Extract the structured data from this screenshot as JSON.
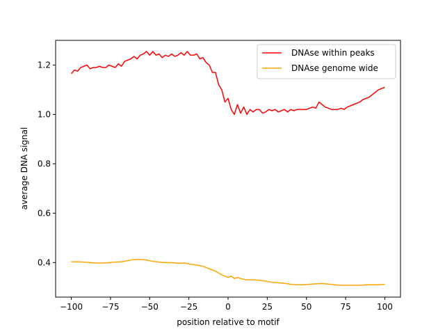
{
  "chart_data": {
    "type": "line",
    "title": "",
    "xlabel": "position relative to motif",
    "ylabel": "average DNA signal",
    "xlim": [
      -110,
      110
    ],
    "ylim": [
      0.26,
      1.3
    ],
    "xticks": [
      -100,
      -75,
      -50,
      -25,
      0,
      25,
      50,
      75,
      100
    ],
    "xtick_labels": [
      "−100",
      "−75",
      "−50",
      "−25",
      "0",
      "25",
      "50",
      "75",
      "100"
    ],
    "yticks": [
      0.4,
      0.6,
      0.8,
      1.0,
      1.2
    ],
    "ytick_labels": [
      "0.4",
      "0.6",
      "0.8",
      "1.0",
      "1.2"
    ],
    "grid": false,
    "legend": "top-right",
    "series": [
      {
        "name": "DNAse within peaks",
        "color": "#ff0000",
        "x": [
          -100,
          -98,
          -96,
          -94,
          -92,
          -90,
          -88,
          -86,
          -84,
          -82,
          -80,
          -78,
          -76,
          -74,
          -72,
          -70,
          -68,
          -66,
          -64,
          -62,
          -60,
          -58,
          -56,
          -54,
          -52,
          -50,
          -48,
          -46,
          -44,
          -42,
          -40,
          -38,
          -36,
          -34,
          -32,
          -30,
          -28,
          -26,
          -24,
          -22,
          -20,
          -18,
          -16,
          -14,
          -12,
          -10,
          -8,
          -6,
          -4,
          -2,
          0,
          2,
          4,
          6,
          8,
          10,
          12,
          14,
          16,
          18,
          20,
          22,
          24,
          26,
          28,
          30,
          32,
          34,
          36,
          38,
          40,
          42,
          44,
          46,
          48,
          50,
          52,
          54,
          56,
          58,
          60,
          62,
          64,
          66,
          68,
          70,
          72,
          74,
          76,
          78,
          80,
          82,
          84,
          86,
          88,
          90,
          92,
          94,
          96,
          98,
          100
        ],
        "y": [
          1.165,
          1.18,
          1.175,
          1.19,
          1.195,
          1.2,
          1.185,
          1.19,
          1.19,
          1.195,
          1.19,
          1.19,
          1.2,
          1.195,
          1.19,
          1.205,
          1.195,
          1.215,
          1.22,
          1.225,
          1.235,
          1.225,
          1.24,
          1.245,
          1.255,
          1.24,
          1.255,
          1.24,
          1.245,
          1.23,
          1.24,
          1.235,
          1.245,
          1.235,
          1.24,
          1.25,
          1.24,
          1.255,
          1.24,
          1.24,
          1.245,
          1.225,
          1.23,
          1.21,
          1.2,
          1.17,
          1.17,
          1.12,
          1.1,
          1.05,
          1.065,
          1.02,
          1.0,
          1.04,
          1.005,
          1.03,
          1.0,
          1.02,
          1.01,
          1.02,
          1.02,
          1.005,
          1.01,
          1.02,
          1.015,
          1.02,
          1.01,
          1.015,
          1.02,
          1.01,
          1.02,
          1.015,
          1.02,
          1.02,
          1.02,
          1.02,
          1.025,
          1.03,
          1.025,
          1.05,
          1.04,
          1.03,
          1.025,
          1.02,
          1.02,
          1.02,
          1.025,
          1.02,
          1.03,
          1.035,
          1.04,
          1.045,
          1.05,
          1.06,
          1.065,
          1.07,
          1.08,
          1.09,
          1.1,
          1.105,
          1.11
        ]
      },
      {
        "name": "DNAse genome wide",
        "color": "#ffa500",
        "x": [
          -100,
          -96,
          -92,
          -88,
          -84,
          -80,
          -76,
          -72,
          -68,
          -64,
          -60,
          -56,
          -52,
          -48,
          -44,
          -40,
          -36,
          -32,
          -28,
          -24,
          -20,
          -16,
          -12,
          -8,
          -4,
          0,
          2,
          4,
          6,
          8,
          10,
          12,
          16,
          20,
          24,
          28,
          32,
          36,
          40,
          44,
          48,
          52,
          56,
          60,
          64,
          68,
          72,
          76,
          80,
          84,
          88,
          92,
          96,
          100
        ],
        "y": [
          0.403,
          0.403,
          0.402,
          0.4,
          0.398,
          0.398,
          0.4,
          0.402,
          0.403,
          0.408,
          0.412,
          0.413,
          0.41,
          0.405,
          0.402,
          0.4,
          0.4,
          0.397,
          0.398,
          0.393,
          0.39,
          0.385,
          0.375,
          0.365,
          0.35,
          0.34,
          0.345,
          0.335,
          0.34,
          0.335,
          0.332,
          0.33,
          0.33,
          0.328,
          0.325,
          0.32,
          0.318,
          0.316,
          0.312,
          0.31,
          0.31,
          0.312,
          0.314,
          0.315,
          0.313,
          0.31,
          0.308,
          0.308,
          0.308,
          0.308,
          0.31,
          0.31,
          0.31,
          0.312
        ]
      }
    ]
  }
}
